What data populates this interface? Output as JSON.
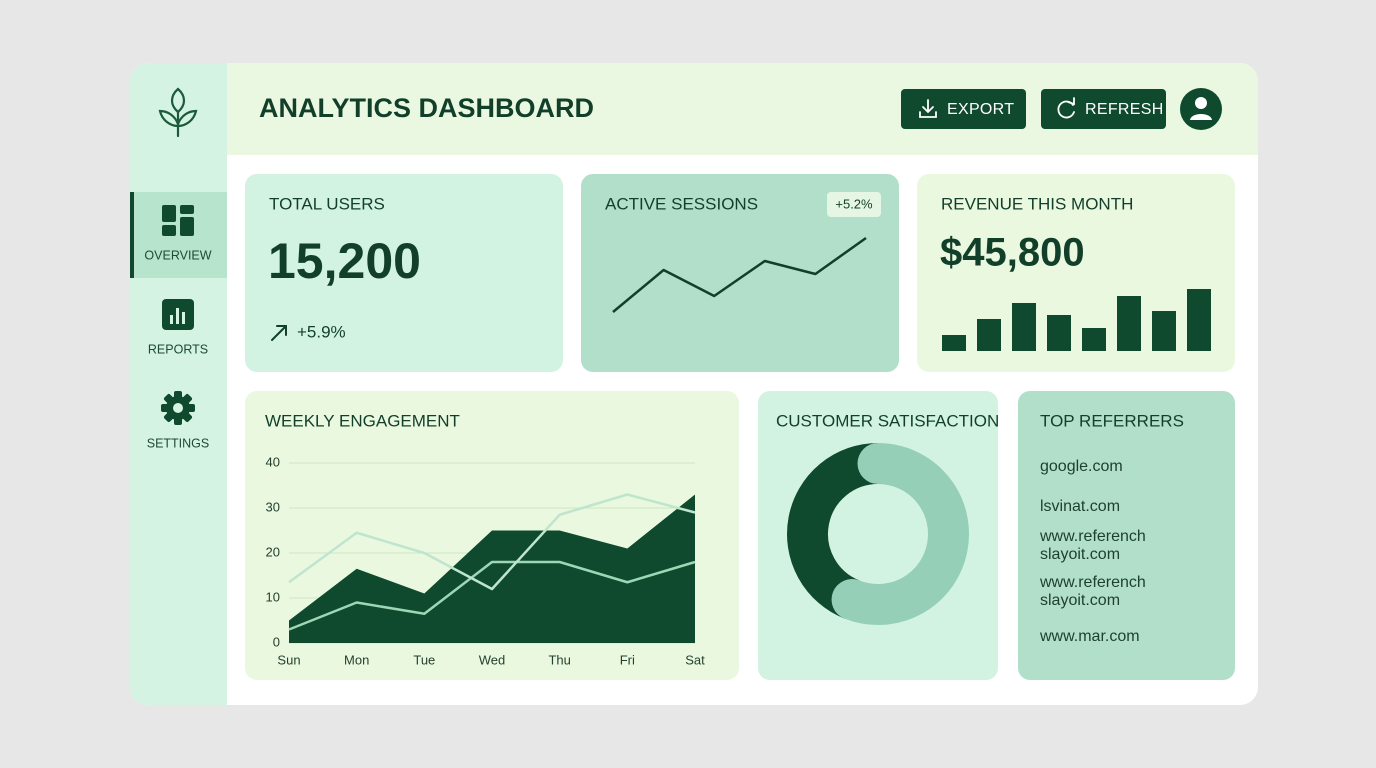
{
  "header": {
    "title": "ANALYTICS DASHBOARD",
    "buttons": [
      "EXPORT",
      "REFRESH"
    ]
  },
  "sidebar": {
    "items": [
      "OVERVIEW",
      "REPORTS",
      "SETTINGS"
    ]
  },
  "kpi": {
    "label": "TOTAL USERS",
    "value": "15,200",
    "change": "+5.9%"
  },
  "referrers": {
    "title": "TOP REFERRERS",
    "items": [
      [
        "google.com"
      ],
      [
        "lsvinat.com"
      ],
      [
        "www.referench",
        "slayoit.com"
      ],
      [
        "www.referench",
        "slayoit.com"
      ],
      [
        "www.mar.com"
      ]
    ]
  },
  "chart_data": [
    {
      "type": "line",
      "title": "ACTIVE SESSIONS",
      "badge": "+5.2%",
      "color": "#123f2a",
      "values": [
        38,
        80,
        54,
        89,
        76,
        112
      ]
    },
    {
      "type": "bar",
      "title": "REVENUE THIS MONTH",
      "headline": "$45,800",
      "color": "#0f4a2f",
      "values": [
        16,
        32,
        48,
        36,
        23,
        55,
        40,
        62
      ]
    },
    {
      "type": "area",
      "title": "WEEKLY ENGAGEMENT",
      "categories": [
        "Sun",
        "Mon",
        "Tue",
        "Wed",
        "Thu",
        "Fri",
        "Sat"
      ],
      "series": [
        {
          "color": "#0f4a2f",
          "fill": true,
          "values": [
            5,
            16.5,
            11,
            25,
            25,
            21,
            33
          ]
        },
        {
          "color": "#9fd6b5",
          "fill": false,
          "values": [
            3,
            9,
            6.5,
            18,
            18,
            13.5,
            18
          ]
        },
        {
          "color": "#bfe5cf",
          "fill": false,
          "values": [
            13.5,
            24.5,
            20,
            12,
            28.5,
            33,
            29
          ]
        }
      ],
      "ylim": [
        0,
        40
      ],
      "yticks": [
        0,
        10,
        20,
        30,
        40
      ],
      "grid": true
    },
    {
      "type": "pie",
      "title": "CUSTOMER SATISFACTION",
      "donut": true,
      "values": [
        56,
        44
      ],
      "colors": [
        "#96cfb8",
        "#0f4a2f"
      ]
    }
  ]
}
